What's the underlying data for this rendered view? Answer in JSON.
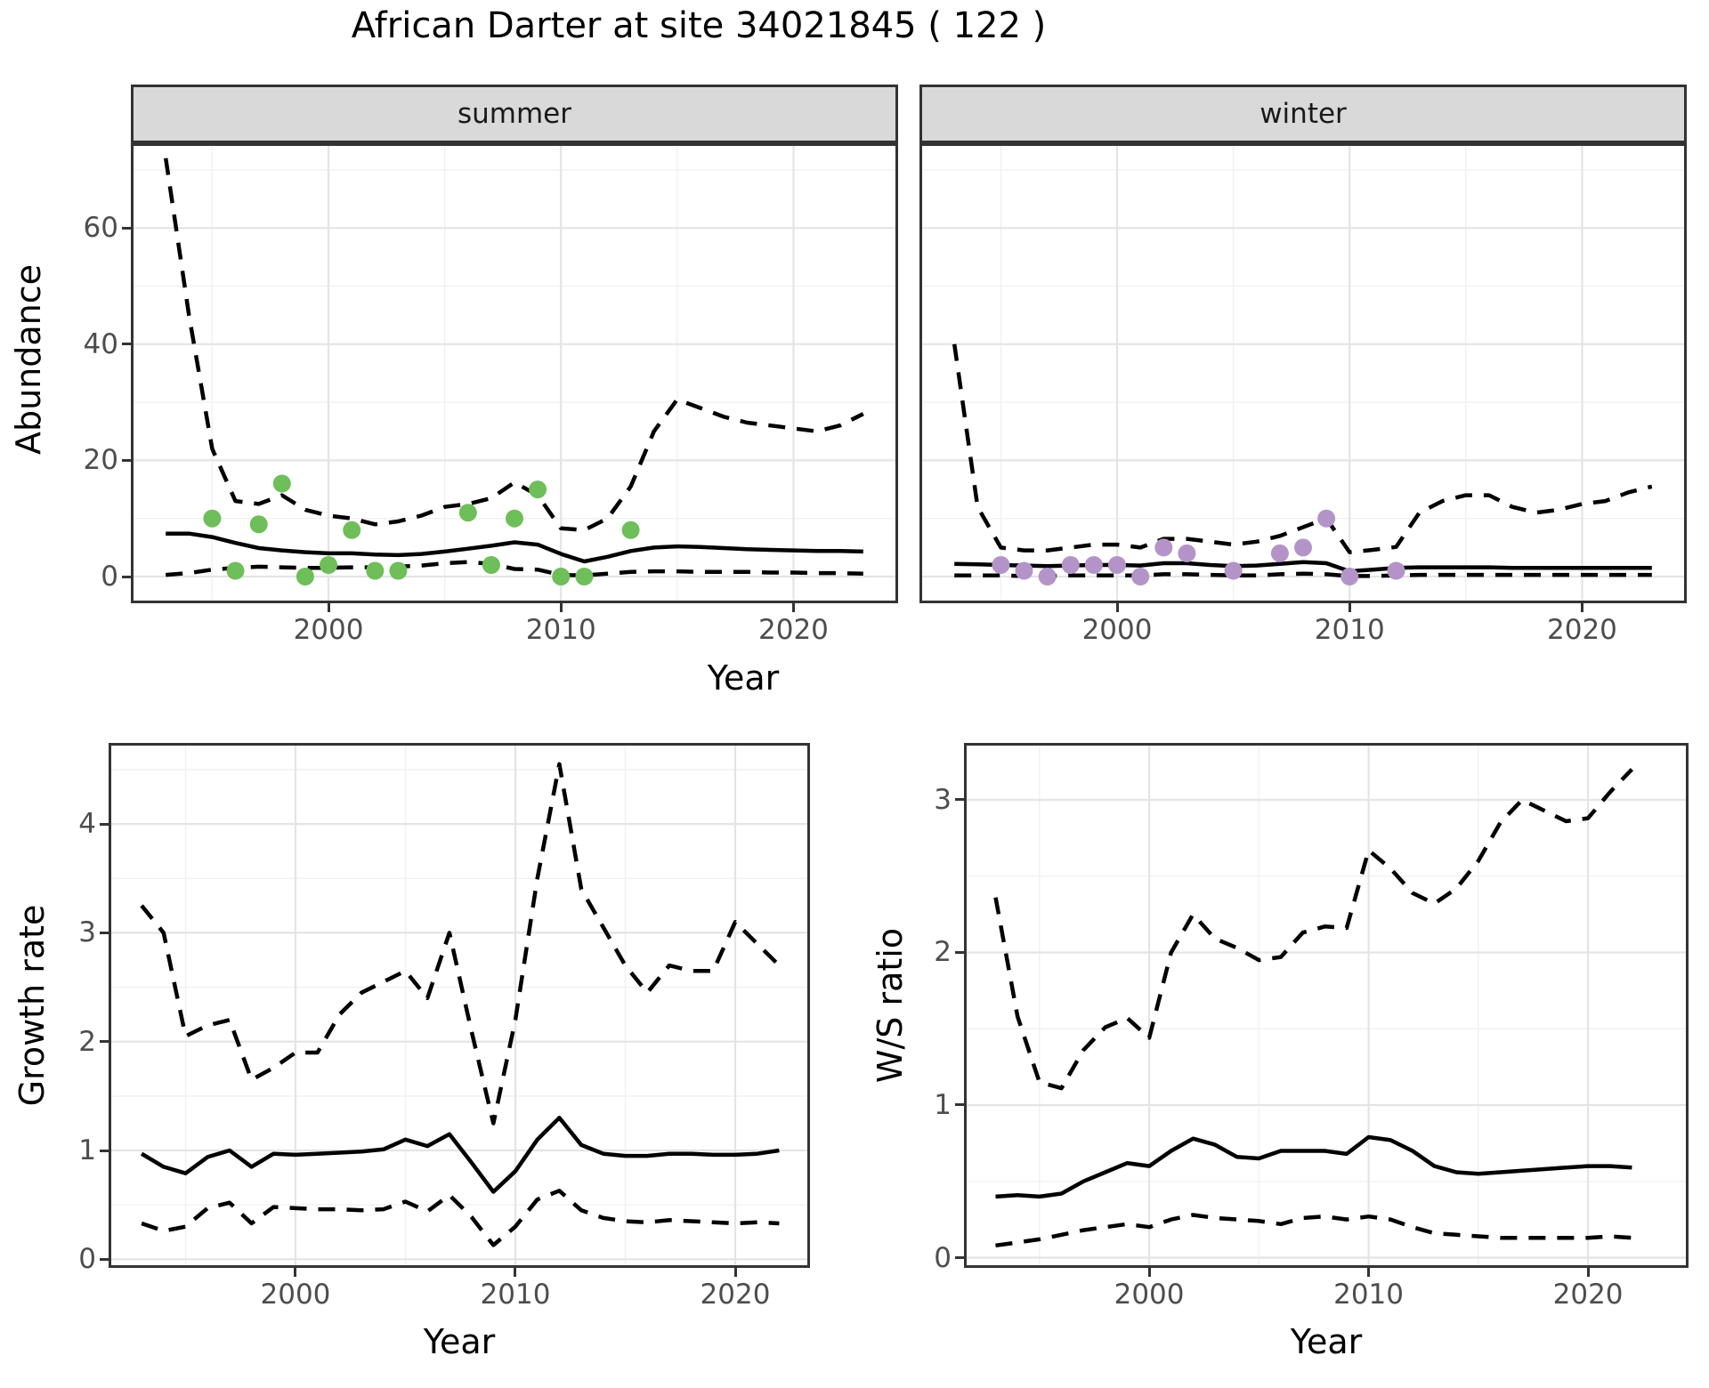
{
  "title": "African Darter at site 34021845 ( 122 )",
  "axis_titles": {
    "abundance": "Abundance",
    "year": "Year",
    "growth_rate": "Growth rate",
    "ws_ratio": "W/S ratio"
  },
  "colors": {
    "panel_bg": "#ffffff",
    "strip_bg": "#d9d9d9",
    "border": "#333333",
    "grid_major": "#e4e4e4",
    "grid_minor": "#f1f1f1",
    "line": "#000000",
    "axis_text": "#4d4d4d",
    "summer_point": "#6ebe5a",
    "winter_point": "#b494c8"
  },
  "chart_data": [
    {
      "id": "abundance-summer",
      "type": "line",
      "facet": "summer",
      "xlabel": "Year",
      "ylabel": "Abundance",
      "xlim": [
        1991.5,
        2024.5
      ],
      "ylim": [
        -4.59,
        74.58
      ],
      "x_ticks": [
        2000,
        2010,
        2020
      ],
      "x_minor": [
        1995,
        2005,
        2015
      ],
      "y_ticks": [
        0,
        20,
        40,
        60
      ],
      "y_minor": [
        10,
        30,
        50,
        70
      ],
      "grid": true,
      "legend": "none",
      "years": [
        1993,
        1994,
        1995,
        1996,
        1997,
        1998,
        1999,
        2000,
        2001,
        2002,
        2003,
        2004,
        2005,
        2006,
        2007,
        2008,
        2009,
        2010,
        2011,
        2012,
        2013,
        2014,
        2015,
        2016,
        2017,
        2018,
        2019,
        2020,
        2021,
        2022,
        2023
      ],
      "series": [
        {
          "name": "median",
          "style": "solid",
          "values": [
            7.4,
            7.4,
            6.8,
            5.8,
            4.9,
            4.5,
            4.2,
            4.0,
            4.0,
            3.8,
            3.7,
            3.9,
            4.3,
            4.8,
            5.3,
            5.9,
            5.5,
            3.9,
            2.6,
            3.4,
            4.4,
            5.0,
            5.2,
            5.1,
            4.9,
            4.7,
            4.6,
            4.5,
            4.4,
            4.4,
            4.3
          ]
        },
        {
          "name": "lower-ci",
          "style": "dashed",
          "values": [
            0.3,
            0.6,
            1.2,
            1.5,
            1.7,
            1.6,
            1.5,
            1.5,
            1.6,
            1.6,
            1.7,
            1.9,
            2.3,
            2.5,
            2.2,
            1.3,
            1.2,
            0.3,
            0.2,
            0.5,
            0.8,
            0.9,
            0.9,
            0.8,
            0.8,
            0.8,
            0.7,
            0.7,
            0.6,
            0.6,
            0.5
          ]
        },
        {
          "name": "upper-ci",
          "style": "dashed",
          "values": [
            72,
            45,
            22,
            13,
            12.5,
            14,
            11.5,
            10.5,
            10,
            9,
            9.5,
            10.5,
            12,
            12.5,
            13.5,
            16.2,
            14,
            8.3,
            8,
            10,
            15.5,
            25,
            30.5,
            29,
            27.5,
            26.5,
            26,
            25.5,
            25,
            26,
            28
          ]
        }
      ],
      "points": {
        "color": "#6ebe5a",
        "years": [
          1995,
          1996,
          1997,
          1998,
          1999,
          2000,
          2001,
          2002,
          2003,
          2006,
          2007,
          2008,
          2009,
          2010,
          2011,
          2013
        ],
        "values": [
          10,
          1,
          9,
          16,
          0,
          2,
          8,
          1,
          1,
          11,
          2,
          10,
          15,
          0,
          0,
          8
        ]
      }
    },
    {
      "id": "abundance-winter",
      "type": "line",
      "facet": "winter",
      "xlabel": "Year",
      "ylabel": "Abundance",
      "xlim": [
        1991.5,
        2024.5
      ],
      "ylim": [
        -4.59,
        74.58
      ],
      "x_ticks": [
        2000,
        2010,
        2020
      ],
      "x_minor": [
        1995,
        2005,
        2015
      ],
      "y_ticks": [
        0,
        20,
        40,
        60
      ],
      "y_minor": [
        10,
        30,
        50,
        70
      ],
      "grid": true,
      "legend": "none",
      "years": [
        1993,
        1994,
        1995,
        1996,
        1997,
        1998,
        1999,
        2000,
        2001,
        2002,
        2003,
        2004,
        2005,
        2006,
        2007,
        2008,
        2009,
        2010,
        2011,
        2012,
        2013,
        2014,
        2015,
        2016,
        2017,
        2018,
        2019,
        2020,
        2021,
        2022,
        2023
      ],
      "series": [
        {
          "name": "median",
          "style": "solid",
          "values": [
            2.2,
            2.1,
            2.0,
            1.9,
            1.8,
            1.9,
            2.0,
            2.0,
            1.9,
            2.3,
            2.3,
            2.0,
            1.8,
            1.9,
            2.2,
            2.5,
            2.3,
            0.9,
            1.2,
            1.5,
            1.6,
            1.6,
            1.6,
            1.6,
            1.5,
            1.5,
            1.5,
            1.5,
            1.5,
            1.5,
            1.5
          ]
        },
        {
          "name": "lower-ci",
          "style": "dashed",
          "values": [
            0.2,
            0.2,
            0.2,
            0.1,
            0.1,
            0.2,
            0.2,
            0.2,
            0.2,
            0.4,
            0.4,
            0.3,
            0.2,
            0.2,
            0.4,
            0.5,
            0.4,
            0.1,
            0.1,
            0.2,
            0.3,
            0.3,
            0.3,
            0.3,
            0.3,
            0.3,
            0.3,
            0.3,
            0.3,
            0.3,
            0.3
          ]
        },
        {
          "name": "upper-ci",
          "style": "dashed",
          "values": [
            40,
            12,
            5,
            4.5,
            4.5,
            5,
            5.5,
            5.5,
            5,
            6.5,
            6.5,
            6,
            5.5,
            6,
            7,
            8.5,
            10,
            4.2,
            4.6,
            5.1,
            11,
            13,
            14,
            14,
            12,
            11,
            11.5,
            12.5,
            13,
            14.5,
            15.5
          ]
        }
      ],
      "points": {
        "color": "#b494c8",
        "years": [
          1995,
          1996,
          1997,
          1998,
          1999,
          2000,
          2001,
          2002,
          2003,
          2005,
          2007,
          2008,
          2009,
          2010,
          2012
        ],
        "values": [
          2,
          1,
          0,
          2,
          2,
          2,
          0,
          5,
          4,
          1,
          4,
          5,
          10,
          0,
          1
        ]
      }
    },
    {
      "id": "growth-rate",
      "type": "line",
      "facet": null,
      "xlabel": "Year",
      "ylabel": "Growth rate",
      "xlim": [
        1991.5,
        2023.4
      ],
      "ylim": [
        -0.079,
        4.745
      ],
      "x_ticks": [
        2000,
        2010,
        2020
      ],
      "x_minor": [
        1995,
        2005,
        2015
      ],
      "y_ticks": [
        0,
        1,
        2,
        3,
        4
      ],
      "y_minor": [
        0.5,
        1.5,
        2.5,
        3.5,
        4.5
      ],
      "grid": true,
      "legend": "none",
      "years": [
        1993,
        1994,
        1995,
        1996,
        1997,
        1998,
        1999,
        2000,
        2001,
        2002,
        2003,
        2004,
        2005,
        2006,
        2007,
        2008,
        2009,
        2010,
        2011,
        2012,
        2013,
        2014,
        2015,
        2016,
        2017,
        2018,
        2019,
        2020,
        2021,
        2022
      ],
      "series": [
        {
          "name": "median",
          "style": "solid",
          "values": [
            0.97,
            0.85,
            0.79,
            0.94,
            1.0,
            0.85,
            0.97,
            0.96,
            0.97,
            0.98,
            0.99,
            1.01,
            1.1,
            1.04,
            1.15,
            0.89,
            0.62,
            0.81,
            1.1,
            1.3,
            1.05,
            0.97,
            0.95,
            0.95,
            0.97,
            0.97,
            0.96,
            0.96,
            0.97,
            1.0
          ]
        },
        {
          "name": "lower-ci",
          "style": "dashed",
          "values": [
            0.33,
            0.26,
            0.3,
            0.47,
            0.52,
            0.33,
            0.48,
            0.47,
            0.46,
            0.46,
            0.45,
            0.46,
            0.53,
            0.44,
            0.59,
            0.39,
            0.13,
            0.3,
            0.55,
            0.63,
            0.45,
            0.38,
            0.35,
            0.34,
            0.36,
            0.35,
            0.34,
            0.33,
            0.34,
            0.33
          ]
        },
        {
          "name": "upper-ci",
          "style": "dashed",
          "values": [
            3.25,
            3.0,
            2.05,
            2.15,
            2.2,
            1.65,
            1.76,
            1.9,
            1.9,
            2.25,
            2.45,
            2.55,
            2.65,
            2.4,
            3.0,
            2.1,
            1.25,
            2.2,
            3.5,
            4.55,
            3.4,
            3.05,
            2.7,
            2.45,
            2.7,
            2.65,
            2.65,
            3.1,
            2.9,
            2.7
          ]
        }
      ],
      "points": null
    },
    {
      "id": "ws-ratio",
      "type": "line",
      "facet": null,
      "xlabel": "Year",
      "ylabel": "W/S ratio",
      "xlim": [
        1991.56,
        2024.58
      ],
      "ylim": [
        -0.067,
        3.373
      ],
      "x_ticks": [
        2000,
        2010,
        2020
      ],
      "x_minor": [
        1995,
        2005,
        2015
      ],
      "y_ticks": [
        0,
        1,
        2,
        3
      ],
      "y_minor": [
        0.5,
        1.5,
        2.5
      ],
      "grid": true,
      "legend": "none",
      "years": [
        1993,
        1994,
        1995,
        1996,
        1997,
        1998,
        1999,
        2000,
        2001,
        2002,
        2003,
        2004,
        2005,
        2006,
        2007,
        2008,
        2009,
        2010,
        2011,
        2012,
        2013,
        2014,
        2015,
        2016,
        2017,
        2018,
        2019,
        2020,
        2021,
        2022
      ],
      "series": [
        {
          "name": "median",
          "style": "solid",
          "values": [
            0.4,
            0.41,
            0.4,
            0.42,
            0.5,
            0.56,
            0.62,
            0.6,
            0.7,
            0.78,
            0.74,
            0.66,
            0.65,
            0.7,
            0.7,
            0.7,
            0.68,
            0.79,
            0.77,
            0.7,
            0.6,
            0.56,
            0.55,
            0.56,
            0.57,
            0.58,
            0.59,
            0.6,
            0.6,
            0.59
          ]
        },
        {
          "name": "lower-ci",
          "style": "dashed",
          "values": [
            0.08,
            0.1,
            0.12,
            0.15,
            0.18,
            0.2,
            0.22,
            0.2,
            0.25,
            0.28,
            0.26,
            0.25,
            0.24,
            0.22,
            0.26,
            0.27,
            0.25,
            0.27,
            0.25,
            0.2,
            0.16,
            0.15,
            0.14,
            0.13,
            0.13,
            0.13,
            0.13,
            0.13,
            0.14,
            0.13
          ]
        },
        {
          "name": "upper-ci",
          "style": "dashed",
          "values": [
            2.36,
            1.58,
            1.15,
            1.11,
            1.36,
            1.51,
            1.57,
            1.44,
            2.0,
            2.25,
            2.09,
            2.03,
            1.95,
            1.97,
            2.13,
            2.17,
            2.16,
            2.67,
            2.55,
            2.39,
            2.32,
            2.42,
            2.6,
            2.85,
            3.0,
            2.93,
            2.86,
            2.88,
            3.05,
            3.2
          ]
        }
      ],
      "points": null
    }
  ]
}
